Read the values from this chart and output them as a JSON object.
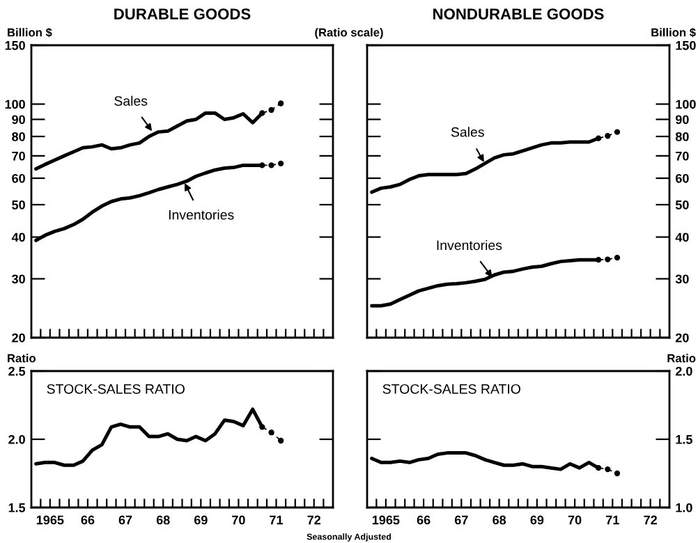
{
  "chart_data": [
    {
      "type": "line",
      "title": "DURABLE GOODS",
      "ylabel": "Billion $",
      "log": "y",
      "ylim": [
        20,
        150
      ],
      "yticks": [
        20,
        30,
        40,
        50,
        60,
        70,
        80,
        90,
        100,
        150
      ],
      "xlim": [
        "1965-01-01",
        "1973-01-01"
      ],
      "tick_labels": "y",
      "xticks": [
        {
          "value": "1965-04-01",
          "label": null
        },
        {
          "value": "1965-07-01",
          "label": null
        },
        {
          "value": "1965-10-01",
          "label": null
        },
        {
          "value": "1966-01-01",
          "label": null
        },
        {
          "value": "1966-04-01",
          "label": null
        },
        {
          "value": "1966-07-01",
          "label": null
        },
        {
          "value": "1966-10-01",
          "label": null
        },
        {
          "value": "1967-01-01",
          "label": null
        },
        {
          "value": "1967-04-01",
          "label": null
        },
        {
          "value": "1967-07-01",
          "label": null
        },
        {
          "value": "1967-10-01",
          "label": null
        },
        {
          "value": "1968-01-01",
          "label": null
        },
        {
          "value": "1968-04-01",
          "label": null
        },
        {
          "value": "1968-07-01",
          "label": null
        },
        {
          "value": "1968-10-01",
          "label": null
        },
        {
          "value": "1969-01-01",
          "label": null
        },
        {
          "value": "1969-04-01",
          "label": null
        },
        {
          "value": "1969-07-01",
          "label": null
        },
        {
          "value": "1969-10-01",
          "label": null
        },
        {
          "value": "1970-01-01",
          "label": null
        },
        {
          "value": "1970-04-01",
          "label": null
        },
        {
          "value": "1970-07-01",
          "label": null
        },
        {
          "value": "1970-10-01",
          "label": null
        },
        {
          "value": "1971-01-01",
          "label": null
        },
        {
          "value": "1971-04-01",
          "label": null
        },
        {
          "value": "1971-07-01",
          "label": null
        },
        {
          "value": "1971-10-01",
          "label": null
        },
        {
          "value": "1972-01-01",
          "label": null
        },
        {
          "value": "1972-04-01",
          "label": null
        },
        {
          "value": "1972-07-01",
          "label": null
        },
        {
          "value": "1972-10-01",
          "label": null
        }
      ],
      "x": [
        "1965-02-15",
        "1965-05-15",
        "1965-08-15",
        "1965-11-15",
        "1966-02-15",
        "1966-05-15",
        "1966-08-15",
        "1966-11-15",
        "1967-02-15",
        "1967-05-15",
        "1967-08-15",
        "1967-11-15",
        "1968-02-15",
        "1968-05-15",
        "1968-08-15",
        "1968-11-15",
        "1969-02-15",
        "1969-05-15",
        "1969-08-15",
        "1969-11-15",
        "1970-02-15",
        "1970-05-15",
        "1970-08-15",
        "1970-11-15",
        "1971-02-15"
      ],
      "series": [
        {
          "color": "#000000",
          "values": [
            64,
            66,
            68,
            70,
            72,
            74,
            74.5,
            75.5,
            73.5,
            74,
            75.5,
            76.5,
            80,
            82.5,
            83,
            86,
            89,
            90,
            94,
            94,
            90,
            91,
            93.5,
            88,
            94
          ]
        },
        {
          "color": "#000000",
          "line_style": "dashed",
          "marker": "circle",
          "x": [
            "1971-02-15",
            "1971-05-15",
            "1971-08-15"
          ],
          "values": [
            94,
            96,
            100.5
          ]
        },
        {
          "color": "#000000",
          "values": [
            39.1,
            40.5,
            41.6,
            42.4,
            43.6,
            45.2,
            47.5,
            49.5,
            51.1,
            52,
            52.4,
            53.2,
            54.3,
            55.5,
            56.5,
            57.5,
            58.8,
            60.8,
            62.2,
            63.5,
            64.3,
            64.6,
            65.6,
            65.6,
            65.6
          ]
        },
        {
          "color": "#000000",
          "line_style": "dashed",
          "marker": "circle",
          "x": [
            "1971-02-15",
            "1971-05-15",
            "1971-08-15"
          ],
          "values": [
            65.6,
            65.6,
            66.4
          ]
        }
      ],
      "annotations": [
        "(Ratio scale)",
        {
          "text": "Sales",
          "x": "1968-03-15",
          "y": 83
        },
        {
          "text": "Inventories",
          "x": "1969-01-25",
          "y": 58
        }
      ]
    },
    {
      "type": "line",
      "title": "NONDURABLE GOODS",
      "ylabel": "Billion $",
      "log": "y",
      "ylim": [
        20,
        150
      ],
      "yticks": [
        20,
        30,
        40,
        50,
        60,
        70,
        80,
        90,
        100,
        150
      ],
      "xlim": [
        "1965-01-01",
        "1973-01-01"
      ],
      "tick_labels": "y",
      "xticks": [
        {
          "value": "1965-04-01",
          "label": null
        },
        {
          "value": "1965-07-01",
          "label": null
        },
        {
          "value": "1965-10-01",
          "label": null
        },
        {
          "value": "1966-01-01",
          "label": null
        },
        {
          "value": "1966-04-01",
          "label": null
        },
        {
          "value": "1966-07-01",
          "label": null
        },
        {
          "value": "1966-10-01",
          "label": null
        },
        {
          "value": "1967-01-01",
          "label": null
        },
        {
          "value": "1967-04-01",
          "label": null
        },
        {
          "value": "1967-07-01",
          "label": null
        },
        {
          "value": "1967-10-01",
          "label": null
        },
        {
          "value": "1968-01-01",
          "label": null
        },
        {
          "value": "1968-04-01",
          "label": null
        },
        {
          "value": "1968-07-01",
          "label": null
        },
        {
          "value": "1968-10-01",
          "label": null
        },
        {
          "value": "1969-01-01",
          "label": null
        },
        {
          "value": "1969-04-01",
          "label": null
        },
        {
          "value": "1969-07-01",
          "label": null
        },
        {
          "value": "1969-10-01",
          "label": null
        },
        {
          "value": "1970-01-01",
          "label": null
        },
        {
          "value": "1970-04-01",
          "label": null
        },
        {
          "value": "1970-07-01",
          "label": null
        },
        {
          "value": "1970-10-01",
          "label": null
        },
        {
          "value": "1971-01-01",
          "label": null
        },
        {
          "value": "1971-04-01",
          "label": null
        },
        {
          "value": "1971-07-01",
          "label": null
        },
        {
          "value": "1971-10-01",
          "label": null
        },
        {
          "value": "1972-01-01",
          "label": null
        },
        {
          "value": "1972-04-01",
          "label": null
        },
        {
          "value": "1972-07-01",
          "label": null
        },
        {
          "value": "1972-10-01",
          "label": null
        }
      ],
      "x": [
        "1965-02-15",
        "1965-05-15",
        "1965-08-15",
        "1965-11-15",
        "1966-02-15",
        "1966-05-15",
        "1966-08-15",
        "1966-11-15",
        "1967-02-15",
        "1967-05-15",
        "1967-08-15",
        "1967-11-15",
        "1968-02-15",
        "1968-05-15",
        "1968-08-15",
        "1968-11-15",
        "1969-02-15",
        "1969-05-15",
        "1969-08-15",
        "1969-11-15",
        "1970-02-15",
        "1970-05-15",
        "1970-08-15",
        "1970-11-15",
        "1971-02-15"
      ],
      "series": [
        {
          "color": "#000000",
          "values": [
            54.5,
            56,
            56.5,
            57.5,
            59.5,
            61,
            61.5,
            61.5,
            61.5,
            61.5,
            62,
            64,
            66.5,
            69,
            70.5,
            71,
            72.5,
            74,
            75.5,
            76.5,
            76.5,
            77,
            77,
            77,
            79
          ]
        },
        {
          "color": "#000000",
          "line_style": "dashed",
          "marker": "circle",
          "x": [
            "1971-02-15",
            "1971-05-15",
            "1971-08-15"
          ],
          "values": [
            79,
            80.3,
            82.5
          ]
        },
        {
          "color": "#000000",
          "values": [
            24.9,
            24.9,
            25.2,
            26,
            26.8,
            27.6,
            28.1,
            28.6,
            28.9,
            29,
            29.2,
            29.5,
            29.9,
            30.8,
            31.4,
            31.6,
            32.1,
            32.5,
            32.7,
            33.3,
            33.8,
            34,
            34.2,
            34.2,
            34.2
          ]
        },
        {
          "color": "#000000",
          "line_style": "dashed",
          "marker": "circle",
          "x": [
            "1971-02-15",
            "1971-05-15",
            "1971-08-15"
          ],
          "values": [
            34.2,
            34.3,
            34.7
          ]
        }
      ],
      "annotations": [
        {
          "text": "Sales",
          "x": "1968-02-05",
          "y": 67
        },
        {
          "text": "Inventories",
          "x": "1968-04-25",
          "y": 30.3
        }
      ]
    },
    {
      "type": "line",
      "title": "STOCK-SALES RATIO",
      "ylabel": "Ratio",
      "ylim": [
        1.5,
        2.5
      ],
      "yticks": [
        {
          "value": 1.5,
          "label": "1.5"
        },
        {
          "value": 2,
          "label": "2.0"
        },
        {
          "value": 2.5,
          "label": "2.5"
        }
      ],
      "xlim": [
        "1965-01-01",
        "1973-01-01"
      ],
      "xticks": [
        {
          "value": "1965-04-01",
          "label": null
        },
        {
          "value": "1965-07-01",
          "label": "1965"
        },
        {
          "value": "1965-10-01",
          "label": null
        },
        {
          "value": "1966-01-01",
          "label": null
        },
        {
          "value": "1966-04-01",
          "label": null
        },
        {
          "value": "1966-07-01",
          "label": "66"
        },
        {
          "value": "1966-10-01",
          "label": null
        },
        {
          "value": "1967-01-01",
          "label": null
        },
        {
          "value": "1967-04-01",
          "label": null
        },
        {
          "value": "1967-07-01",
          "label": "67"
        },
        {
          "value": "1967-10-01",
          "label": null
        },
        {
          "value": "1968-01-01",
          "label": null
        },
        {
          "value": "1968-04-01",
          "label": null
        },
        {
          "value": "1968-07-01",
          "label": "68"
        },
        {
          "value": "1968-10-01",
          "label": null
        },
        {
          "value": "1969-01-01",
          "label": null
        },
        {
          "value": "1969-04-01",
          "label": null
        },
        {
          "value": "1969-07-01",
          "label": "69"
        },
        {
          "value": "1969-10-01",
          "label": null
        },
        {
          "value": "1970-01-01",
          "label": null
        },
        {
          "value": "1970-04-01",
          "label": null
        },
        {
          "value": "1970-07-01",
          "label": "70"
        },
        {
          "value": "1970-10-01",
          "label": null
        },
        {
          "value": "1971-01-01",
          "label": null
        },
        {
          "value": "1971-04-01",
          "label": null
        },
        {
          "value": "1971-07-01",
          "label": "71"
        },
        {
          "value": "1971-10-01",
          "label": null
        },
        {
          "value": "1972-01-01",
          "label": null
        },
        {
          "value": "1972-04-01",
          "label": null
        },
        {
          "value": "1972-07-01",
          "label": "72"
        },
        {
          "value": "1972-10-01",
          "label": null
        }
      ],
      "x": [
        "1965-02-15",
        "1965-05-15",
        "1965-08-15",
        "1965-11-15",
        "1966-02-15",
        "1966-05-15",
        "1966-08-15",
        "1966-11-15",
        "1967-02-15",
        "1967-05-15",
        "1967-08-15",
        "1967-11-15",
        "1968-02-15",
        "1968-05-15",
        "1968-08-15",
        "1968-11-15",
        "1969-02-15",
        "1969-05-15",
        "1969-08-15",
        "1969-11-15",
        "1970-02-15",
        "1970-05-15",
        "1970-08-15",
        "1970-11-15",
        "1971-02-15"
      ],
      "series": [
        {
          "color": "#000000",
          "values": [
            1.82,
            1.83,
            1.83,
            1.81,
            1.81,
            1.84,
            1.92,
            1.96,
            2.09,
            2.11,
            2.09,
            2.09,
            2.02,
            2.02,
            2.04,
            2.0,
            1.99,
            2.02,
            1.99,
            2.04,
            2.14,
            2.13,
            2.1,
            2.22,
            2.09
          ]
        },
        {
          "color": "#000000",
          "line_style": "dashed",
          "marker": "circle",
          "x": [
            "1971-02-15",
            "1971-05-15",
            "1971-08-15"
          ],
          "values": [
            2.09,
            2.05,
            1.99
          ]
        }
      ],
      "annotations": [
        "Seasonally Adjusted"
      ]
    },
    {
      "type": "line",
      "title": "STOCK-SALES RATIO",
      "ylabel": "Ratio",
      "ylim": [
        1.0,
        2.0
      ],
      "yticks": [
        {
          "value": 1,
          "label": "1.0"
        },
        {
          "value": 1.5,
          "label": "1.5"
        },
        {
          "value": 2,
          "label": "2.0"
        }
      ],
      "xlim": [
        "1965-01-01",
        "1973-01-01"
      ],
      "xticks": [
        {
          "value": "1965-04-01",
          "label": null
        },
        {
          "value": "1965-07-01",
          "label": "1965"
        },
        {
          "value": "1965-10-01",
          "label": null
        },
        {
          "value": "1966-01-01",
          "label": null
        },
        {
          "value": "1966-04-01",
          "label": null
        },
        {
          "value": "1966-07-01",
          "label": "66"
        },
        {
          "value": "1966-10-01",
          "label": null
        },
        {
          "value": "1967-01-01",
          "label": null
        },
        {
          "value": "1967-04-01",
          "label": null
        },
        {
          "value": "1967-07-01",
          "label": "67"
        },
        {
          "value": "1967-10-01",
          "label": null
        },
        {
          "value": "1968-01-01",
          "label": null
        },
        {
          "value": "1968-04-01",
          "label": null
        },
        {
          "value": "1968-07-01",
          "label": "68"
        },
        {
          "value": "1968-10-01",
          "label": null
        },
        {
          "value": "1969-01-01",
          "label": null
        },
        {
          "value": "1969-04-01",
          "label": null
        },
        {
          "value": "1969-07-01",
          "label": "69"
        },
        {
          "value": "1969-10-01",
          "label": null
        },
        {
          "value": "1970-01-01",
          "label": null
        },
        {
          "value": "1970-04-01",
          "label": null
        },
        {
          "value": "1970-07-01",
          "label": "70"
        },
        {
          "value": "1970-10-01",
          "label": null
        },
        {
          "value": "1971-01-01",
          "label": null
        },
        {
          "value": "1971-04-01",
          "label": null
        },
        {
          "value": "1971-07-01",
          "label": "71"
        },
        {
          "value": "1971-10-01",
          "label": null
        },
        {
          "value": "1972-01-01",
          "label": null
        },
        {
          "value": "1972-04-01",
          "label": null
        },
        {
          "value": "1972-07-01",
          "label": "72"
        },
        {
          "value": "1972-10-01",
          "label": null
        }
      ],
      "x": [
        "1965-02-15",
        "1965-05-15",
        "1965-08-15",
        "1965-11-15",
        "1966-02-15",
        "1966-05-15",
        "1966-08-15",
        "1966-11-15",
        "1967-02-15",
        "1967-05-15",
        "1967-08-15",
        "1967-11-15",
        "1968-02-15",
        "1968-05-15",
        "1968-08-15",
        "1968-11-15",
        "1969-02-15",
        "1969-05-15",
        "1969-08-15",
        "1969-11-15",
        "1970-02-15",
        "1970-05-15",
        "1970-08-15",
        "1970-11-15",
        "1971-02-15"
      ],
      "series": [
        {
          "color": "#000000",
          "values": [
            1.36,
            1.33,
            1.33,
            1.34,
            1.33,
            1.35,
            1.36,
            1.39,
            1.4,
            1.4,
            1.4,
            1.38,
            1.35,
            1.33,
            1.31,
            1.31,
            1.32,
            1.3,
            1.3,
            1.29,
            1.28,
            1.32,
            1.29,
            1.33,
            1.29
          ]
        },
        {
          "color": "#000000",
          "line_style": "dashed",
          "marker": "circle",
          "x": [
            "1971-02-15",
            "1971-05-15",
            "1971-08-15"
          ],
          "values": [
            1.29,
            1.28,
            1.25
          ]
        }
      ]
    }
  ]
}
